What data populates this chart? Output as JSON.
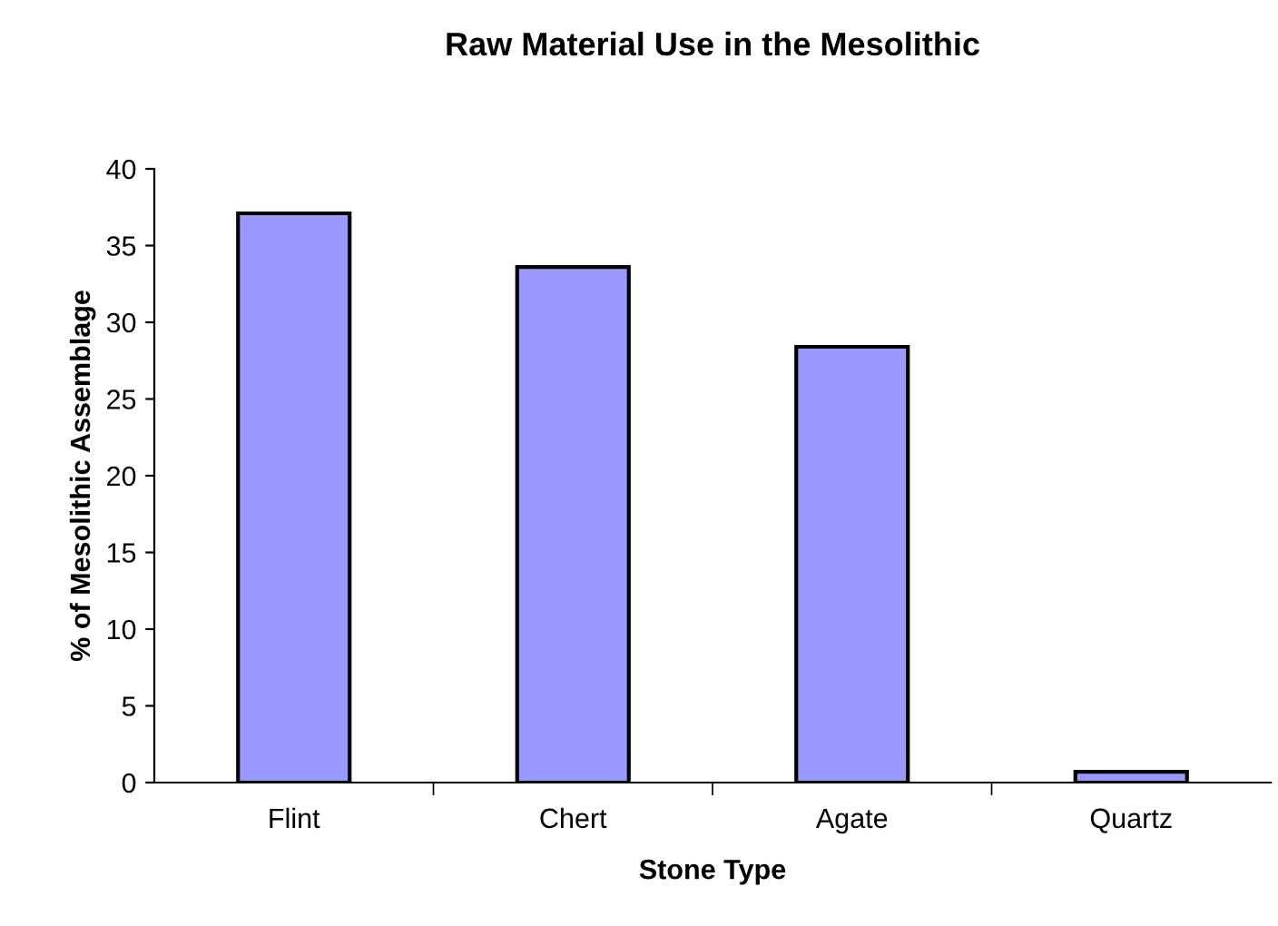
{
  "chart_data": {
    "type": "bar",
    "title": "Raw Material Use in the Mesolithic",
    "xlabel": "Stone Type",
    "ylabel": "% of Mesolithic Assemblage",
    "categories": [
      "Flint",
      "Chert",
      "Agate",
      "Quartz"
    ],
    "values": [
      37.1,
      33.6,
      28.4,
      0.7
    ],
    "color": "#9999ff",
    "ylim": [
      0,
      40
    ],
    "yticks": [
      0,
      5,
      10,
      15,
      20,
      25,
      30,
      35,
      40
    ],
    "grid": false,
    "legend": false
  }
}
